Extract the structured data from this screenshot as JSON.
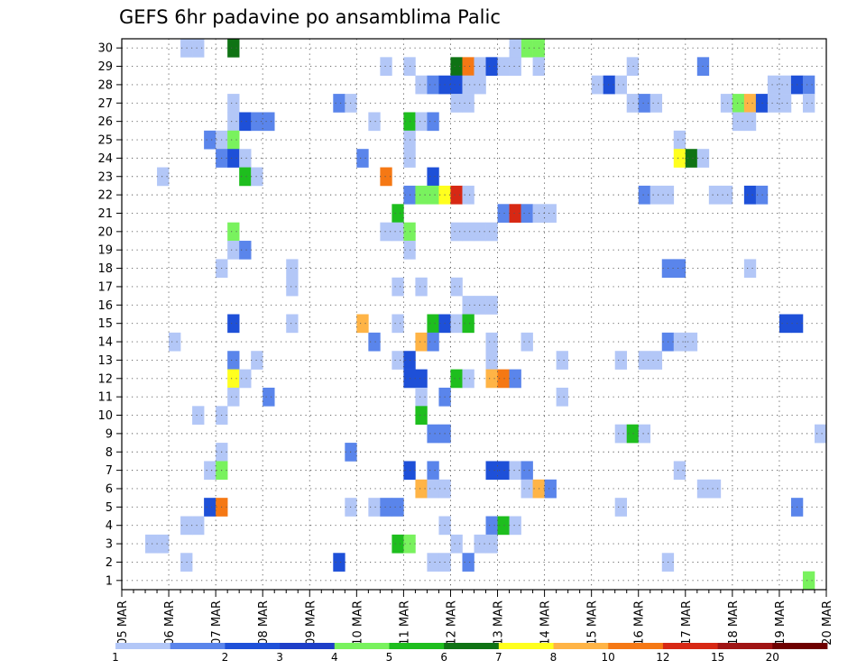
{
  "chart_data": {
    "type": "heatmap",
    "title": "GEFS 6hr padavine po ansamblima Palic",
    "xlabel": "",
    "ylabel": "",
    "x_ticks": [
      "05 MAR",
      "06 MAR",
      "07 MAR",
      "08 MAR",
      "09 MAR",
      "10 MAR",
      "11 MAR",
      "12 MAR",
      "13 MAR",
      "14 MAR",
      "15 MAR",
      "16 MAR",
      "17 MAR",
      "18 MAR",
      "19 MAR",
      "20 MAR"
    ],
    "y_ticks": [
      "1",
      "2",
      "3",
      "4",
      "5",
      "6",
      "7",
      "8",
      "9",
      "10",
      "11",
      "12",
      "13",
      "14",
      "15",
      "16",
      "17",
      "18",
      "19",
      "20",
      "21",
      "22",
      "23",
      "24",
      "25",
      "26",
      "27",
      "28",
      "29",
      "30"
    ],
    "x_range": [
      0,
      60
    ],
    "y_range": [
      0.5,
      30.5
    ],
    "x_unit": "6-hour steps from 05 MAR 00z",
    "grid": true,
    "colorbar": {
      "levels": [
        "1",
        "2",
        "3",
        "4",
        "5",
        "6",
        "7",
        "8",
        "10",
        "12",
        "15",
        "20"
      ],
      "colors": [
        "#b3c7f7",
        "#5a85eb",
        "#1e50d8",
        "#1e3fc8",
        "#79f25e",
        "#1ebe1e",
        "#0f7314",
        "#ffff1e",
        "#ffb446",
        "#f57814",
        "#d72814",
        "#a01414",
        "#6e0000"
      ]
    },
    "cells": [
      [
        30,
        5,
        0
      ],
      [
        30,
        6,
        0
      ],
      [
        30,
        9,
        6
      ],
      [
        30,
        34,
        4
      ],
      [
        30,
        35,
        4
      ],
      [
        30,
        33,
        0
      ],
      [
        29,
        22,
        0
      ],
      [
        29,
        24,
        0
      ],
      [
        29,
        28,
        6
      ],
      [
        29,
        29,
        9
      ],
      [
        29,
        30,
        0
      ],
      [
        29,
        31,
        2
      ],
      [
        29,
        32,
        0
      ],
      [
        29,
        33,
        0
      ],
      [
        29,
        35,
        0
      ],
      [
        29,
        43,
        0
      ],
      [
        29,
        49,
        1
      ],
      [
        28,
        25,
        0
      ],
      [
        28,
        26,
        1
      ],
      [
        28,
        27,
        2
      ],
      [
        28,
        28,
        2
      ],
      [
        28,
        29,
        0
      ],
      [
        28,
        30,
        0
      ],
      [
        28,
        40,
        0
      ],
      [
        28,
        41,
        2
      ],
      [
        28,
        42,
        0
      ],
      [
        28,
        55,
        0
      ],
      [
        28,
        56,
        0
      ],
      [
        28,
        57,
        2
      ],
      [
        28,
        58,
        1
      ],
      [
        27,
        9,
        0
      ],
      [
        27,
        18,
        1
      ],
      [
        27,
        19,
        0
      ],
      [
        27,
        28,
        0
      ],
      [
        27,
        29,
        0
      ],
      [
        27,
        43,
        0
      ],
      [
        27,
        44,
        1
      ],
      [
        27,
        45,
        0
      ],
      [
        27,
        51,
        0
      ],
      [
        27,
        52,
        4
      ],
      [
        27,
        53,
        8
      ],
      [
        27,
        54,
        2
      ],
      [
        27,
        55,
        0
      ],
      [
        27,
        56,
        0
      ],
      [
        27,
        58,
        0
      ],
      [
        26,
        9,
        0
      ],
      [
        26,
        10,
        2
      ],
      [
        26,
        11,
        1
      ],
      [
        26,
        12,
        1
      ],
      [
        26,
        21,
        0
      ],
      [
        26,
        24,
        5
      ],
      [
        26,
        25,
        0
      ],
      [
        26,
        26,
        1
      ],
      [
        26,
        52,
        0
      ],
      [
        26,
        53,
        0
      ],
      [
        25,
        7,
        1
      ],
      [
        25,
        8,
        0
      ],
      [
        25,
        9,
        4
      ],
      [
        25,
        24,
        0
      ],
      [
        25,
        47,
        0
      ],
      [
        24,
        8,
        1
      ],
      [
        24,
        9,
        2
      ],
      [
        24,
        10,
        0
      ],
      [
        24,
        20,
        1
      ],
      [
        24,
        24,
        0
      ],
      [
        24,
        47,
        7
      ],
      [
        24,
        48,
        6
      ],
      [
        24,
        49,
        0
      ],
      [
        23,
        3,
        0
      ],
      [
        23,
        10,
        5
      ],
      [
        23,
        11,
        0
      ],
      [
        23,
        22,
        9
      ],
      [
        23,
        26,
        2
      ],
      [
        22,
        24,
        1
      ],
      [
        22,
        25,
        4
      ],
      [
        22,
        26,
        4
      ],
      [
        22,
        27,
        7
      ],
      [
        22,
        28,
        10
      ],
      [
        22,
        29,
        0
      ],
      [
        22,
        44,
        1
      ],
      [
        22,
        45,
        0
      ],
      [
        22,
        46,
        0
      ],
      [
        22,
        50,
        0
      ],
      [
        22,
        51,
        0
      ],
      [
        22,
        53,
        2
      ],
      [
        22,
        54,
        1
      ],
      [
        21,
        23,
        5
      ],
      [
        21,
        32,
        1
      ],
      [
        21,
        33,
        10
      ],
      [
        21,
        34,
        1
      ],
      [
        21,
        35,
        0
      ],
      [
        21,
        36,
        0
      ],
      [
        20,
        9,
        4
      ],
      [
        20,
        22,
        0
      ],
      [
        20,
        23,
        0
      ],
      [
        20,
        24,
        4
      ],
      [
        20,
        28,
        0
      ],
      [
        20,
        29,
        0
      ],
      [
        20,
        30,
        0
      ],
      [
        20,
        31,
        0
      ],
      [
        19,
        9,
        0
      ],
      [
        19,
        10,
        1
      ],
      [
        19,
        24,
        0
      ],
      [
        18,
        8,
        0
      ],
      [
        18,
        14,
        0
      ],
      [
        18,
        46,
        1
      ],
      [
        18,
        47,
        1
      ],
      [
        18,
        53,
        0
      ],
      [
        17,
        14,
        0
      ],
      [
        17,
        23,
        0
      ],
      [
        17,
        25,
        0
      ],
      [
        17,
        28,
        0
      ],
      [
        16,
        29,
        0
      ],
      [
        16,
        30,
        0
      ],
      [
        16,
        31,
        0
      ],
      [
        15,
        9,
        2
      ],
      [
        15,
        14,
        0
      ],
      [
        15,
        20,
        8
      ],
      [
        15,
        23,
        0
      ],
      [
        15,
        26,
        5
      ],
      [
        15,
        27,
        2
      ],
      [
        15,
        28,
        0
      ],
      [
        15,
        29,
        5
      ],
      [
        15,
        56,
        2
      ],
      [
        15,
        57,
        2
      ],
      [
        14,
        4,
        0
      ],
      [
        14,
        21,
        1
      ],
      [
        14,
        25,
        8
      ],
      [
        14,
        26,
        1
      ],
      [
        14,
        31,
        0
      ],
      [
        14,
        34,
        0
      ],
      [
        14,
        46,
        1
      ],
      [
        14,
        47,
        0
      ],
      [
        14,
        48,
        0
      ],
      [
        13,
        9,
        1
      ],
      [
        13,
        11,
        0
      ],
      [
        13,
        23,
        0
      ],
      [
        13,
        24,
        2
      ],
      [
        13,
        31,
        0
      ],
      [
        13,
        37,
        0
      ],
      [
        13,
        42,
        0
      ],
      [
        13,
        44,
        0
      ],
      [
        13,
        45,
        0
      ],
      [
        12,
        9,
        7
      ],
      [
        12,
        10,
        0
      ],
      [
        12,
        24,
        2
      ],
      [
        12,
        25,
        2
      ],
      [
        12,
        28,
        5
      ],
      [
        12,
        29,
        0
      ],
      [
        12,
        31,
        8
      ],
      [
        12,
        32,
        9
      ],
      [
        12,
        33,
        1
      ],
      [
        11,
        9,
        0
      ],
      [
        11,
        12,
        1
      ],
      [
        11,
        25,
        0
      ],
      [
        11,
        27,
        1
      ],
      [
        11,
        37,
        0
      ],
      [
        10,
        6,
        0
      ],
      [
        10,
        8,
        0
      ],
      [
        10,
        25,
        5
      ],
      [
        9,
        26,
        1
      ],
      [
        9,
        27,
        1
      ],
      [
        9,
        42,
        0
      ],
      [
        9,
        43,
        5
      ],
      [
        9,
        44,
        0
      ],
      [
        9,
        59,
        0
      ],
      [
        8,
        8,
        0
      ],
      [
        8,
        19,
        1
      ],
      [
        7,
        7,
        0
      ],
      [
        7,
        8,
        4
      ],
      [
        7,
        24,
        2
      ],
      [
        7,
        26,
        1
      ],
      [
        7,
        31,
        2
      ],
      [
        7,
        32,
        2
      ],
      [
        7,
        33,
        0
      ],
      [
        7,
        34,
        1
      ],
      [
        7,
        47,
        0
      ],
      [
        6,
        25,
        8
      ],
      [
        6,
        26,
        0
      ],
      [
        6,
        27,
        0
      ],
      [
        6,
        34,
        0
      ],
      [
        6,
        35,
        8
      ],
      [
        6,
        36,
        1
      ],
      [
        6,
        49,
        0
      ],
      [
        6,
        50,
        0
      ],
      [
        5,
        7,
        2
      ],
      [
        5,
        8,
        9
      ],
      [
        5,
        19,
        0
      ],
      [
        5,
        21,
        0
      ],
      [
        5,
        22,
        1
      ],
      [
        5,
        23,
        1
      ],
      [
        5,
        42,
        0
      ],
      [
        5,
        57,
        1
      ],
      [
        4,
        5,
        0
      ],
      [
        4,
        6,
        0
      ],
      [
        4,
        27,
        0
      ],
      [
        4,
        31,
        1
      ],
      [
        4,
        32,
        5
      ],
      [
        4,
        33,
        0
      ],
      [
        3,
        2,
        0
      ],
      [
        3,
        3,
        0
      ],
      [
        3,
        23,
        5
      ],
      [
        3,
        24,
        4
      ],
      [
        3,
        28,
        0
      ],
      [
        3,
        30,
        0
      ],
      [
        3,
        31,
        0
      ],
      [
        2,
        5,
        0
      ],
      [
        2,
        18,
        2
      ],
      [
        2,
        26,
        0
      ],
      [
        2,
        27,
        0
      ],
      [
        2,
        29,
        1
      ],
      [
        2,
        46,
        0
      ],
      [
        1,
        58,
        4
      ]
    ],
    "cell_format": [
      "row",
      "x_step",
      "color_index"
    ]
  }
}
